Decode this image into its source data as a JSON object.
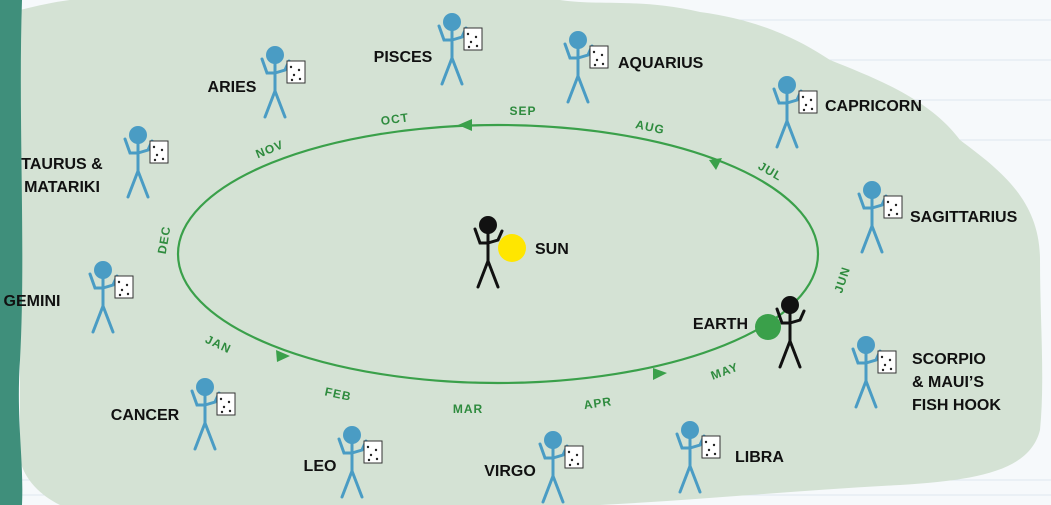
{
  "diagram": {
    "constellations": [
      {
        "lines": [
          "PISCES"
        ]
      },
      {
        "lines": [
          "AQUARIUS"
        ]
      },
      {
        "lines": [
          "ARIES"
        ]
      },
      {
        "lines": [
          "CAPRICORN"
        ]
      },
      {
        "lines": [
          "TAURUS &",
          "MATARIKI"
        ]
      },
      {
        "lines": [
          "SAGITTARIUS"
        ]
      },
      {
        "lines": [
          "GEMINI"
        ]
      },
      {
        "lines": [
          "SCORPIO",
          "& MAUI’S",
          "FISH HOOK"
        ]
      },
      {
        "lines": [
          "CANCER"
        ]
      },
      {
        "lines": [
          "LEO"
        ]
      },
      {
        "lines": [
          "VIRGO"
        ]
      },
      {
        "lines": [
          "LIBRA"
        ]
      }
    ],
    "months": [
      "OCT",
      "SEP",
      "AUG",
      "JUL",
      "JUN",
      "MAY",
      "APR",
      "MAR",
      "FEB",
      "JAN",
      "DEC",
      "NOV"
    ],
    "sun": {
      "label": "SUN"
    },
    "earth": {
      "label": "EARTH"
    }
  }
}
